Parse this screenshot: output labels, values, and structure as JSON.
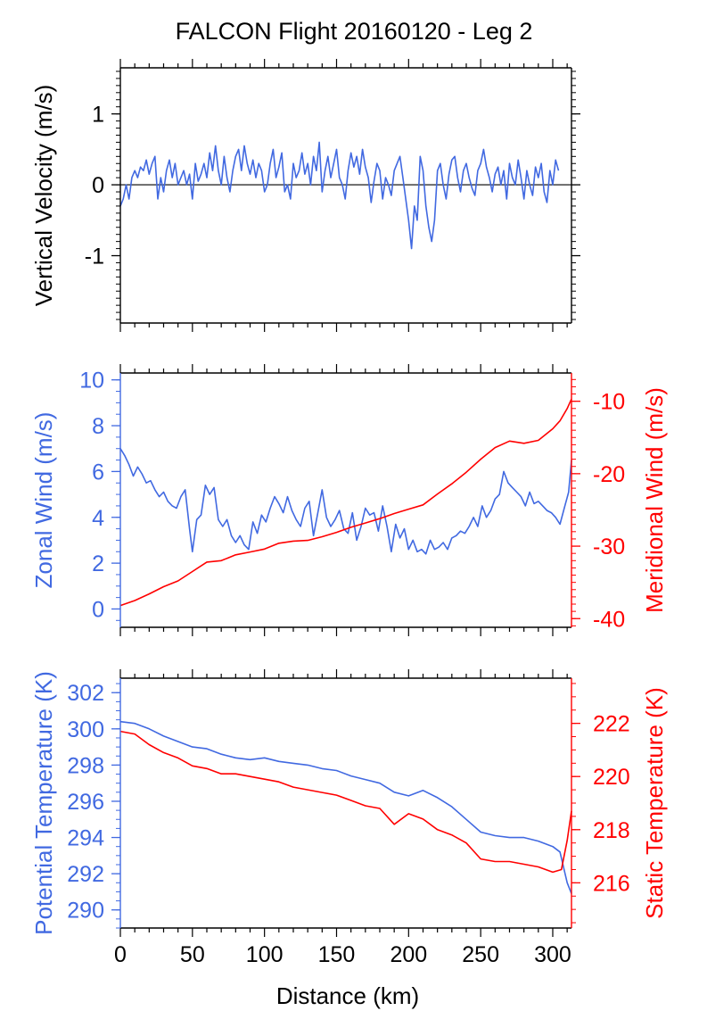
{
  "figure": {
    "title": "FALCON Flight 20160120 - Leg 2",
    "xlabel": "Distance (km)",
    "xlim": [
      0,
      313
    ],
    "xticks": [
      0,
      50,
      100,
      150,
      200,
      250,
      300
    ]
  },
  "colors": {
    "blue": "#4169e1",
    "red": "#ff0000",
    "black": "#000000"
  },
  "chart_data": [
    {
      "type": "line",
      "ylabel": "Vertical Velocity (m/s)",
      "ylim": [
        -1.95,
        1.65
      ],
      "yticks": [
        -1,
        0,
        1
      ],
      "zero_line": true,
      "series": [
        {
          "color": "#4169e1",
          "x": [
            0,
            2,
            4,
            6,
            8,
            10,
            12,
            14,
            16,
            18,
            20,
            22,
            24,
            26,
            28,
            30,
            32,
            34,
            36,
            38,
            40,
            42,
            44,
            46,
            48,
            50,
            52,
            54,
            56,
            58,
            60,
            62,
            64,
            66,
            68,
            70,
            72,
            74,
            76,
            78,
            80,
            82,
            84,
            86,
            88,
            90,
            92,
            94,
            96,
            98,
            100,
            102,
            104,
            106,
            108,
            110,
            112,
            114,
            116,
            118,
            120,
            122,
            124,
            126,
            128,
            130,
            132,
            134,
            136,
            138,
            140,
            142,
            144,
            146,
            148,
            150,
            152,
            154,
            156,
            158,
            160,
            162,
            164,
            166,
            168,
            170,
            172,
            174,
            176,
            178,
            180,
            182,
            184,
            186,
            188,
            190,
            192,
            194,
            196,
            198,
            200,
            202,
            204,
            206,
            208,
            210,
            212,
            214,
            216,
            218,
            220,
            222,
            224,
            226,
            228,
            230,
            232,
            234,
            236,
            238,
            240,
            242,
            244,
            246,
            248,
            250,
            252,
            254,
            256,
            258,
            260,
            262,
            264,
            266,
            268,
            270,
            272,
            274,
            276,
            278,
            280,
            282,
            284,
            286,
            288,
            290,
            292,
            294,
            296,
            298,
            300,
            302,
            304
          ],
          "y": [
            -0.3,
            -0.2,
            0.0,
            -0.2,
            0.1,
            0.2,
            0.1,
            0.25,
            0.2,
            0.35,
            0.15,
            0.3,
            0.4,
            -0.2,
            0.1,
            -0.1,
            0.2,
            0.35,
            0.1,
            0.3,
            0.0,
            0.1,
            0.2,
            0.0,
            0.15,
            -0.2,
            0.3,
            0.05,
            0.15,
            0.3,
            0.1,
            0.45,
            0.2,
            0.55,
            0.2,
            0.0,
            0.4,
            0.1,
            -0.1,
            0.2,
            0.4,
            0.5,
            0.2,
            0.55,
            0.3,
            0.15,
            0.35,
            0.1,
            0.3,
            0.2,
            -0.1,
            0.0,
            0.3,
            0.5,
            0.1,
            0.25,
            0.45,
            -0.1,
            0.0,
            -0.2,
            0.3,
            0.1,
            0.2,
            0.45,
            0.15,
            0.3,
            0.0,
            0.4,
            0.2,
            0.6,
            -0.1,
            0.2,
            0.4,
            0.1,
            0.3,
            0.5,
            0.1,
            0.0,
            -0.2,
            0.2,
            0.45,
            0.25,
            0.4,
            0.15,
            0.5,
            0.25,
            0.1,
            -0.25,
            0.05,
            0.3,
            0.2,
            -0.2,
            0.1,
            0.0,
            -0.15,
            0.2,
            0.3,
            0.4,
            0.1,
            -0.2,
            -0.5,
            -0.9,
            -0.3,
            -0.5,
            0.4,
            0.2,
            -0.3,
            -0.6,
            -0.8,
            -0.5,
            0.2,
            0.3,
            0.0,
            -0.2,
            0.15,
            0.35,
            0.4,
            0.1,
            -0.1,
            0.2,
            0.3,
            0.1,
            -0.05,
            -0.15,
            0.2,
            0.3,
            0.5,
            0.25,
            0.1,
            -0.1,
            0.15,
            0.25,
            0.0,
            0.2,
            -0.2,
            0.3,
            0.1,
            0.0,
            0.35,
            0.1,
            -0.2,
            0.2,
            0.0,
            -0.15,
            0.25,
            0.1,
            0.3,
            -0.1,
            -0.25,
            0.2,
            0.0,
            0.35,
            0.2
          ]
        }
      ]
    },
    {
      "type": "line",
      "ylabel": "Zonal Wind (m/s)",
      "ylabel_right": "Meridional Wind (m/s)",
      "ylim": [
        -0.8,
        10.3
      ],
      "yticks": [
        0,
        2,
        4,
        6,
        8,
        10
      ],
      "y2lim": [
        -41.2,
        -6.1
      ],
      "y2ticks": [
        -40,
        -30,
        -20,
        -10
      ],
      "series": [
        {
          "axis": "left",
          "color": "#4169e1",
          "x": [
            0,
            3,
            6,
            9,
            12,
            15,
            18,
            21,
            24,
            27,
            30,
            33,
            36,
            39,
            42,
            45,
            48,
            50,
            53,
            56,
            59,
            62,
            65,
            68,
            71,
            74,
            77,
            80,
            83,
            86,
            89,
            92,
            95,
            98,
            101,
            104,
            107,
            110,
            113,
            116,
            119,
            122,
            125,
            128,
            131,
            134,
            137,
            140,
            143,
            146,
            149,
            152,
            155,
            158,
            161,
            164,
            167,
            170,
            173,
            176,
            179,
            182,
            185,
            188,
            191,
            194,
            197,
            200,
            203,
            206,
            209,
            212,
            215,
            218,
            221,
            224,
            227,
            230,
            233,
            236,
            239,
            242,
            245,
            248,
            251,
            254,
            257,
            260,
            263,
            266,
            269,
            272,
            275,
            278,
            281,
            284,
            287,
            290,
            293,
            296,
            299,
            302,
            305,
            308,
            311,
            313
          ],
          "y": [
            7.0,
            6.7,
            6.3,
            5.8,
            6.2,
            5.9,
            5.5,
            5.6,
            5.2,
            4.9,
            5.1,
            4.7,
            4.5,
            4.4,
            4.9,
            5.2,
            3.5,
            2.5,
            3.9,
            4.1,
            5.4,
            5.0,
            5.3,
            3.9,
            3.6,
            3.9,
            3.2,
            2.9,
            3.2,
            2.8,
            2.6,
            3.8,
            3.3,
            4.1,
            3.8,
            4.4,
            4.9,
            4.6,
            4.2,
            4.9,
            4.3,
            3.9,
            3.6,
            4.4,
            4.7,
            3.2,
            4.2,
            5.2,
            4.0,
            3.6,
            3.9,
            4.3,
            3.5,
            3.3,
            4.2,
            3.0,
            3.6,
            4.4,
            4.1,
            4.2,
            3.4,
            4.5,
            3.6,
            2.5,
            3.7,
            3.1,
            3.5,
            2.6,
            3.0,
            2.5,
            2.6,
            2.4,
            3.0,
            2.6,
            2.7,
            2.9,
            2.6,
            3.1,
            3.2,
            3.4,
            3.3,
            3.6,
            4.0,
            3.6,
            4.5,
            4.0,
            4.3,
            4.8,
            5.0,
            6.0,
            5.5,
            5.3,
            5.1,
            4.9,
            4.5,
            5.1,
            4.6,
            4.7,
            4.5,
            4.3,
            4.2,
            4.0,
            3.7,
            4.4,
            5.1,
            6.5
          ]
        },
        {
          "axis": "right",
          "color": "#ff0000",
          "x": [
            0,
            10,
            20,
            30,
            40,
            50,
            60,
            70,
            80,
            90,
            100,
            110,
            120,
            130,
            140,
            150,
            160,
            170,
            180,
            190,
            200,
            210,
            220,
            230,
            240,
            250,
            260,
            270,
            280,
            290,
            300,
            305,
            310,
            313
          ],
          "y": [
            -38.2,
            -37.5,
            -36.6,
            -35.6,
            -34.8,
            -33.5,
            -32.2,
            -32.0,
            -31.2,
            -30.8,
            -30.4,
            -29.6,
            -29.3,
            -29.2,
            -28.7,
            -28.1,
            -27.4,
            -26.8,
            -26.2,
            -25.5,
            -24.9,
            -24.3,
            -22.8,
            -21.4,
            -19.8,
            -18.0,
            -16.4,
            -15.5,
            -15.8,
            -15.4,
            -13.8,
            -12.7,
            -11.0,
            -9.7
          ]
        }
      ]
    },
    {
      "type": "line",
      "ylabel": "Potential Temperature (K)",
      "ylabel_right": "Static Temperature (K)",
      "xlabel": "Distance (km)",
      "ylim": [
        289.0,
        302.8
      ],
      "yticks": [
        290,
        292,
        294,
        296,
        298,
        300,
        302
      ],
      "y2lim": [
        214.3,
        223.7
      ],
      "y2ticks": [
        216,
        218,
        220,
        222
      ],
      "series": [
        {
          "axis": "left",
          "color": "#4169e1",
          "x": [
            0,
            10,
            20,
            30,
            40,
            50,
            60,
            70,
            80,
            90,
            100,
            110,
            120,
            130,
            140,
            150,
            160,
            170,
            180,
            190,
            200,
            210,
            220,
            230,
            240,
            250,
            260,
            270,
            280,
            290,
            300,
            305,
            310,
            313
          ],
          "y": [
            300.4,
            300.3,
            300.0,
            299.6,
            299.3,
            299.0,
            298.9,
            298.6,
            298.4,
            298.3,
            298.4,
            298.2,
            298.1,
            298.0,
            297.8,
            297.7,
            297.4,
            297.2,
            297.0,
            296.5,
            296.3,
            296.6,
            296.2,
            295.7,
            295.0,
            294.3,
            294.1,
            294.0,
            294.0,
            293.8,
            293.5,
            293.2,
            291.5,
            290.9
          ]
        },
        {
          "axis": "right",
          "color": "#ff0000",
          "x": [
            0,
            10,
            20,
            30,
            40,
            50,
            60,
            70,
            80,
            90,
            100,
            110,
            120,
            130,
            140,
            150,
            160,
            170,
            180,
            190,
            200,
            210,
            220,
            230,
            240,
            250,
            260,
            270,
            280,
            290,
            300,
            306,
            310,
            313
          ],
          "y": [
            221.7,
            221.6,
            221.2,
            220.9,
            220.7,
            220.4,
            220.3,
            220.1,
            220.1,
            220.0,
            219.9,
            219.8,
            219.6,
            219.5,
            219.4,
            219.3,
            219.1,
            218.9,
            218.8,
            218.2,
            218.6,
            218.4,
            218.0,
            217.8,
            217.5,
            216.9,
            216.8,
            216.8,
            216.7,
            216.6,
            216.4,
            216.5,
            217.6,
            218.7
          ]
        }
      ]
    }
  ]
}
